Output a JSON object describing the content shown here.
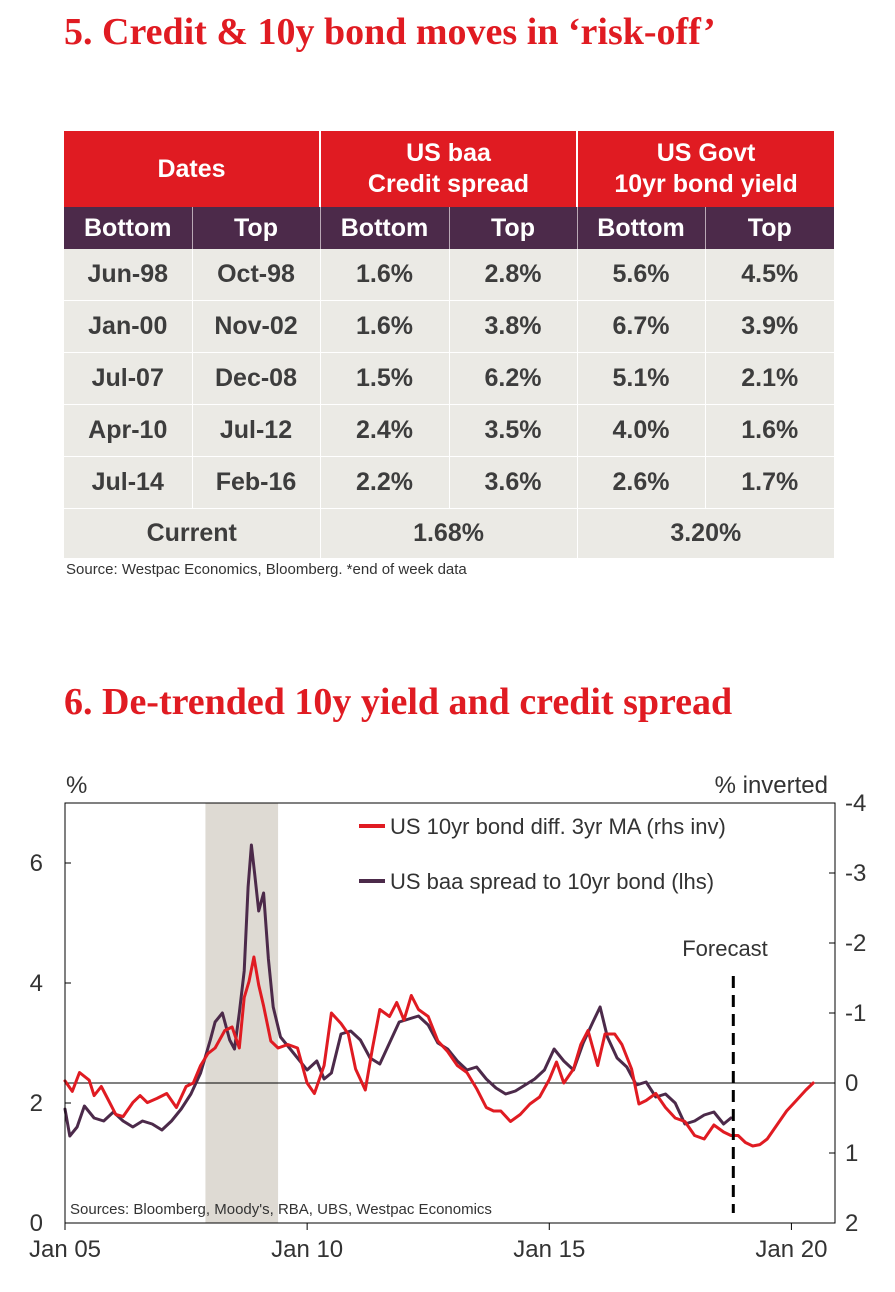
{
  "section5": {
    "title": "5. Credit & 10y bond moves in ‘risk-off’",
    "headers": {
      "dates": "Dates",
      "spread_line1": "US baa",
      "spread_line2": "Credit spread",
      "govt_line1": "US Govt",
      "govt_line2": "10yr bond yield"
    },
    "subheaders": [
      "Bottom",
      "Top",
      "Bottom",
      "Top",
      "Bottom",
      "Top"
    ],
    "rows": [
      [
        "Jun-98",
        "Oct-98",
        "1.6%",
        "2.8%",
        "5.6%",
        "4.5%"
      ],
      [
        "Jan-00",
        "Nov-02",
        "1.6%",
        "3.8%",
        "6.7%",
        "3.9%"
      ],
      [
        "Jul-07",
        "Dec-08",
        "1.5%",
        "6.2%",
        "5.1%",
        "2.1%"
      ],
      [
        "Apr-10",
        "Jul-12",
        "2.4%",
        "3.5%",
        "4.0%",
        "1.6%"
      ],
      [
        "Jul-14",
        "Feb-16",
        "2.2%",
        "3.6%",
        "2.6%",
        "1.7%"
      ]
    ],
    "current": {
      "label": "Current",
      "spread": "1.68%",
      "govt": "3.20%"
    },
    "source": "Source: Westpac Economics, Bloomberg. *end of week data"
  },
  "section6": {
    "title": "6. De-trended 10y yield and credit spread"
  },
  "chart_data": {
    "type": "line",
    "title": "6. De-trended 10y yield and credit spread",
    "ylabel_left": "%",
    "ylabel_right": "% inverted",
    "x_range": [
      2005.0,
      2020.9
    ],
    "ylim_left": [
      0,
      7
    ],
    "ylim_right": [
      2,
      -4
    ],
    "left_ticks": [
      "0",
      "2",
      "4",
      "6"
    ],
    "right_ticks": [
      "2",
      "1",
      "0",
      "-1",
      "-2",
      "-3",
      "-4"
    ],
    "x_ticks": [
      {
        "label": "Jan 05",
        "x": 2005
      },
      {
        "label": "Jan 10",
        "x": 2010
      },
      {
        "label": "Jan 15",
        "x": 2015
      },
      {
        "label": "Jan 20",
        "x": 2020
      }
    ],
    "shaded_region": [
      2007.9,
      2009.4
    ],
    "zero_line_rhs": 0,
    "forecast": {
      "label": "Forecast",
      "x": 2018.8
    },
    "sources": "Sources: Bloomberg, Moody's, RBA, UBS,  Westpac Economics",
    "colors": {
      "red": "#e01b22",
      "purple": "#4c2a4a",
      "shade": "#dedad3",
      "grid": "#000000"
    },
    "series": [
      {
        "name": "US 10yr bond diff. 3yr MA (rhs inv)",
        "axis": "right",
        "color": "#e01b22",
        "x": [
          2005.0,
          2005.15,
          2005.3,
          2005.5,
          2005.6,
          2005.75,
          2005.9,
          2006.05,
          2006.2,
          2006.4,
          2006.55,
          2006.7,
          2006.9,
          2007.1,
          2007.3,
          2007.5,
          2007.65,
          2007.8,
          2007.95,
          2008.1,
          2008.3,
          2008.45,
          2008.6,
          2008.7,
          2008.8,
          2008.9,
          2009.0,
          2009.1,
          2009.25,
          2009.4,
          2009.6,
          2009.8,
          2010.0,
          2010.15,
          2010.35,
          2010.5,
          2010.7,
          2010.85,
          2011.0,
          2011.2,
          2011.35,
          2011.5,
          2011.7,
          2011.85,
          2012.0,
          2012.15,
          2012.3,
          2012.5,
          2012.7,
          2012.9,
          2013.1,
          2013.3,
          2013.5,
          2013.7,
          2013.85,
          2014.0,
          2014.2,
          2014.4,
          2014.6,
          2014.8,
          2015.0,
          2015.15,
          2015.3,
          2015.5,
          2015.65,
          2015.8,
          2016.0,
          2016.15,
          2016.35,
          2016.5,
          2016.7,
          2016.85,
          2017.0,
          2017.2,
          2017.4,
          2017.6,
          2017.8,
          2018.0,
          2018.2,
          2018.4,
          2018.6,
          2018.75,
          2018.9,
          2019.05,
          2019.2,
          2019.35,
          2019.5,
          2019.7,
          2019.9,
          2020.1,
          2020.3,
          2020.45
        ],
        "values": [
          -0.03,
          0.12,
          -0.15,
          -0.04,
          0.18,
          0.05,
          0.25,
          0.45,
          0.48,
          0.28,
          0.18,
          0.28,
          0.22,
          0.15,
          0.35,
          0.05,
          0.0,
          -0.25,
          -0.42,
          -0.5,
          -0.75,
          -0.8,
          -0.5,
          -1.22,
          -1.45,
          -1.8,
          -1.4,
          -1.1,
          -0.6,
          -0.5,
          -0.55,
          -0.5,
          0.0,
          0.15,
          -0.25,
          -1.0,
          -0.85,
          -0.7,
          -0.2,
          0.1,
          -0.5,
          -1.05,
          -0.95,
          -1.15,
          -0.9,
          -1.25,
          -1.05,
          -0.95,
          -0.6,
          -0.45,
          -0.25,
          -0.15,
          0.08,
          0.35,
          0.4,
          0.4,
          0.55,
          0.45,
          0.3,
          0.2,
          -0.05,
          -0.3,
          0.0,
          -0.2,
          -0.55,
          -0.75,
          -0.25,
          -0.7,
          -0.7,
          -0.55,
          -0.2,
          0.3,
          0.25,
          0.15,
          0.35,
          0.5,
          0.55,
          0.75,
          0.8,
          0.6,
          0.7,
          0.75,
          0.75,
          0.85,
          0.9,
          0.88,
          0.8,
          0.6,
          0.4,
          0.25,
          0.1,
          0.0
        ]
      },
      {
        "name": "US baa spread to 10yr bond (lhs)",
        "axis": "left",
        "color": "#4c2a4a",
        "x": [
          2005.0,
          2005.1,
          2005.25,
          2005.4,
          2005.6,
          2005.8,
          2006.0,
          2006.2,
          2006.4,
          2006.6,
          2006.8,
          2007.0,
          2007.2,
          2007.4,
          2007.6,
          2007.8,
          2008.0,
          2008.1,
          2008.25,
          2008.4,
          2008.5,
          2008.6,
          2008.7,
          2008.78,
          2008.85,
          2008.92,
          2009.0,
          2009.1,
          2009.2,
          2009.3,
          2009.45,
          2009.6,
          2009.8,
          2010.0,
          2010.2,
          2010.35,
          2010.5,
          2010.7,
          2010.9,
          2011.1,
          2011.3,
          2011.5,
          2011.7,
          2011.9,
          2012.1,
          2012.3,
          2012.5,
          2012.7,
          2012.9,
          2013.1,
          2013.3,
          2013.5,
          2013.7,
          2013.9,
          2014.1,
          2014.3,
          2014.5,
          2014.7,
          2014.9,
          2015.1,
          2015.3,
          2015.5,
          2015.7,
          2015.9,
          2016.05,
          2016.2,
          2016.4,
          2016.6,
          2016.8,
          2017.0,
          2017.2,
          2017.4,
          2017.6,
          2017.8,
          2018.0,
          2018.2,
          2018.4,
          2018.6,
          2018.75
        ],
        "values": [
          1.9,
          1.45,
          1.6,
          1.95,
          1.75,
          1.7,
          1.85,
          1.7,
          1.6,
          1.7,
          1.65,
          1.55,
          1.7,
          1.9,
          2.15,
          2.5,
          3.05,
          3.35,
          3.5,
          3.05,
          2.9,
          3.5,
          4.2,
          5.6,
          6.3,
          5.8,
          5.2,
          5.5,
          4.4,
          3.6,
          3.1,
          2.95,
          2.75,
          2.55,
          2.7,
          2.4,
          2.5,
          3.15,
          3.2,
          3.05,
          2.75,
          2.65,
          3.0,
          3.35,
          3.4,
          3.45,
          3.3,
          3.0,
          2.9,
          2.7,
          2.55,
          2.6,
          2.4,
          2.25,
          2.15,
          2.2,
          2.3,
          2.4,
          2.55,
          2.9,
          2.7,
          2.55,
          3.0,
          3.35,
          3.6,
          3.1,
          2.75,
          2.6,
          2.3,
          2.35,
          2.1,
          2.15,
          2.0,
          1.65,
          1.7,
          1.8,
          1.85,
          1.65,
          1.75
        ]
      }
    ]
  }
}
